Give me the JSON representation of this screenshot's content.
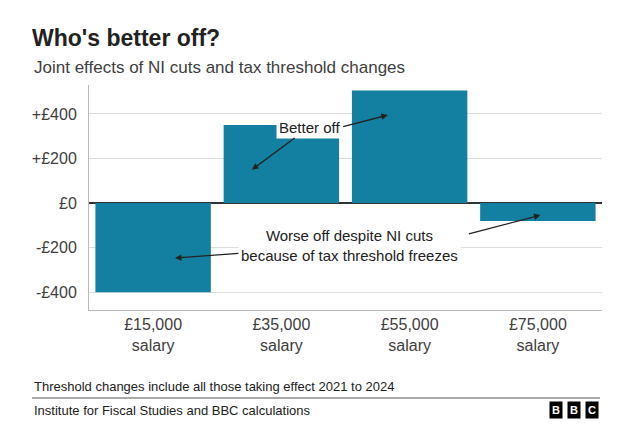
{
  "chart_data": {
    "type": "bar",
    "title": "Who's better off?",
    "subtitle": "Joint effects of NI cuts and tax threshold changes",
    "categories": [
      "£15,000 salary",
      "£35,000 salary",
      "£55,000 salary",
      "£75,000 salary"
    ],
    "values": [
      -400,
      350,
      505,
      -80
    ],
    "color": "#1380a1",
    "ylim": [
      -480,
      530
    ],
    "yticks": [
      {
        "value": -400,
        "label": "-£400"
      },
      {
        "value": -200,
        "label": "-£200"
      },
      {
        "value": 0,
        "label": "£0"
      },
      {
        "value": 200,
        "label": "+£200"
      },
      {
        "value": 400,
        "label": "+£400"
      }
    ],
    "grid": true,
    "annotations": [
      [
        "Better off"
      ],
      [
        "Worse off despite NI cuts",
        "because of tax threshold freezes"
      ]
    ],
    "note": "Threshold changes include all those taking effect 2021 to 2024",
    "source": "Institute for Fiscal Studies and BBC calculations",
    "logo": "BBC"
  }
}
